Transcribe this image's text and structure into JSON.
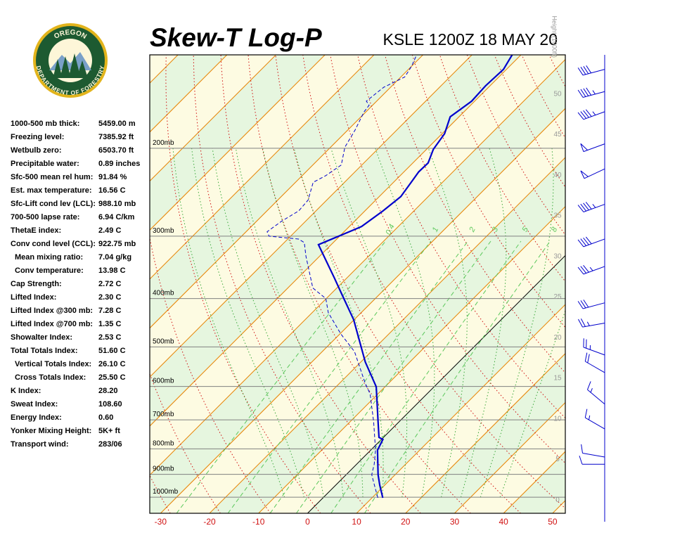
{
  "header": {
    "title": "Skew-T Log-P",
    "station": "KSLE 1200Z 18 MAY 20"
  },
  "logo": {
    "top": "OREGON",
    "bottom": "DEPARTMENT OF FORESTRY"
  },
  "stats": [
    {
      "label": "1000-500 mb thick:",
      "value": "5459.00 m"
    },
    {
      "label": "Freezing level:",
      "value": "7385.92 ft"
    },
    {
      "label": "Wetbulb zero:",
      "value": "6503.70 ft"
    },
    {
      "label": "Precipitable water:",
      "value": "0.89 inches"
    },
    {
      "label": "Sfc-500 mean rel hum:",
      "value": "91.84 %"
    },
    {
      "label": "Est. max temperature:",
      "value": "16.56 C"
    },
    {
      "label": "Sfc-Lift cond lev (LCL):",
      "value": "988.10 mb"
    },
    {
      "label": "700-500 lapse rate:",
      "value": "6.94 C/km"
    },
    {
      "label": "ThetaE index:",
      "value": "2.49 C"
    },
    {
      "label": "Conv cond level (CCL):",
      "value": "922.75 mb",
      "sub": [
        {
          "label": "Mean mixing ratio:",
          "value": "7.04 g/kg"
        },
        {
          "label": "Conv temperature:",
          "value": "13.98 C"
        }
      ]
    },
    {
      "label": "Cap Strength:",
      "value": "2.72 C"
    },
    {
      "label": "Lifted Index:",
      "value": "2.30 C"
    },
    {
      "label": "Lifted Index @300 mb:",
      "value": "7.28 C"
    },
    {
      "label": "Lifted Index @700 mb:",
      "value": "1.35 C"
    },
    {
      "label": "Showalter Index:",
      "value": "2.53 C"
    },
    {
      "label": "Total Totals Index:",
      "value": "51.60 C",
      "sub": [
        {
          "label": "Vertical Totals Index:",
          "value": "26.10 C"
        },
        {
          "label": "Cross Totals Index:",
          "value": "25.50 C"
        }
      ]
    },
    {
      "label": "K Index:",
      "value": "28.20"
    },
    {
      "label": "Sweat Index:",
      "value": "108.60"
    },
    {
      "label": "Energy Index:",
      "value": "0.60"
    },
    {
      "label": "Yonker Mixing Height:",
      "value": "5K+ ft"
    },
    {
      "label": "Transport wind:",
      "value": "283/06"
    }
  ],
  "chart_data": {
    "type": "skewt",
    "xlim": [
      -32.2,
      52.6
    ],
    "xticks": [
      -30,
      -20,
      -10,
      0,
      10,
      20,
      30,
      40,
      50
    ],
    "ylim": [
      1077,
      130
    ],
    "ylog": true,
    "yticks": [
      {
        "value": 1000,
        "label": "1000mb"
      },
      {
        "value": 900,
        "label": "900mb"
      },
      {
        "value": 800,
        "label": "800mb"
      },
      {
        "value": 700,
        "label": "700mb"
      },
      {
        "value": 600,
        "label": "600mb"
      },
      {
        "value": 500,
        "label": "500mb"
      },
      {
        "value": 400,
        "label": "400mb"
      },
      {
        "value": 300,
        "label": "300mb"
      },
      {
        "value": 200,
        "label": "200mb"
      }
    ],
    "y2lim": [
      -1.73,
      54.7
    ],
    "y2ticks": [
      0,
      5,
      10,
      15,
      20,
      25,
      30,
      35,
      40,
      45,
      50
    ],
    "y2label": "Height (1000ft)",
    "mixing_ratio_lines": [
      0.4,
      1,
      2,
      3,
      5,
      8
    ],
    "series": [
      {
        "color": "#0000cc",
        "pressure": [
          1003,
          946,
          901,
          805,
          766,
          759,
          706,
          601,
          536,
          441,
          394,
          363,
          312,
          287,
          267,
          250,
          236,
          223,
          214,
          201,
          187,
          173,
          161,
          150,
          139,
          130
        ],
        "values": [
          12.2,
          9.0,
          6.5,
          1.4,
          0.3,
          -0.9,
          -4.3,
          -11.8,
          -19.1,
          -30.1,
          -37.4,
          -42.7,
          -52.6,
          -47.5,
          -46.3,
          -45.6,
          -46.3,
          -47.0,
          -46.9,
          -48.6,
          -49.5,
          -51.8,
          -50.6,
          -50.9,
          -50.6,
          -51.8
        ]
      },
      {
        "color": "#0000cc",
        "dashed": true,
        "pressure": [
          1003,
          946,
          901,
          859,
          805,
          706,
          621,
          591,
          511,
          471,
          427,
          400,
          381,
          329,
          309,
          304,
          300,
          294,
          280,
          267,
          254,
          234,
          227,
          216,
          199,
          184,
          169,
          164,
          161,
          151,
          144,
          137,
          130
        ],
        "values": [
          11.2,
          7.9,
          5.2,
          3.6,
          1.0,
          -5.2,
          -11.6,
          -14.8,
          -23.4,
          -29.8,
          -36.7,
          -40.1,
          -44.9,
          -52.8,
          -55.9,
          -57.8,
          -64.4,
          -65.7,
          -64.9,
          -63.5,
          -63.8,
          -66.4,
          -65.2,
          -64.2,
          -67.1,
          -68.5,
          -70.4,
          -70.7,
          -72.1,
          -71.4,
          -69.2,
          -70.0,
          -71.3
        ]
      }
    ],
    "winds": {
      "color": "#0000cc",
      "pressure": [
        859,
        831,
        730,
        651,
        563,
        519,
        448,
        408,
        345,
        304,
        259,
        220,
        196,
        169,
        154,
        139
      ],
      "direction": [
        270,
        280,
        300,
        310,
        300,
        290,
        260,
        255,
        250,
        250,
        250,
        245,
        250,
        250,
        255,
        255
      ],
      "speed": [
        10,
        10,
        15,
        15,
        20,
        25,
        25,
        30,
        35,
        40,
        45,
        50,
        50,
        45,
        45,
        40
      ]
    }
  }
}
